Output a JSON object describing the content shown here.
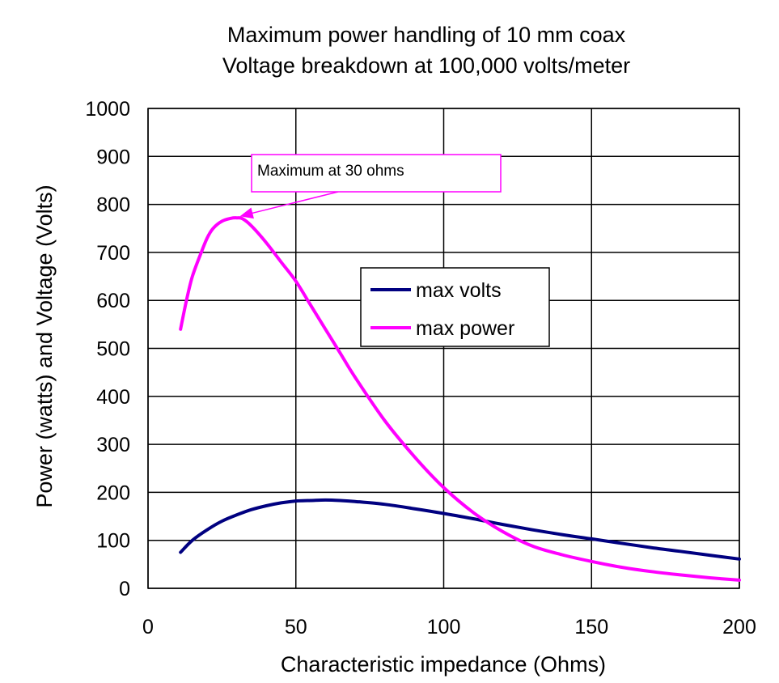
{
  "chart_data": {
    "type": "line",
    "title": "Maximum power handling of 10 mm coax",
    "subtitle": "Voltage breakdown at 100,000 volts/meter",
    "xlabel": "Characteristic impedance (Ohms)",
    "ylabel": "Power (watts) and Voltage (Volts)",
    "xlim": [
      0,
      200
    ],
    "ylim": [
      0,
      1000
    ],
    "xticks": [
      0,
      50,
      100,
      150,
      200
    ],
    "yticks": [
      0,
      100,
      200,
      300,
      400,
      500,
      600,
      700,
      800,
      900,
      1000
    ],
    "grid": true,
    "legend_position": "center-right",
    "series": [
      {
        "name": "max volts",
        "color": "#000080",
        "x": [
          11,
          15,
          20,
          25,
          30,
          35,
          40,
          45,
          50,
          55,
          60,
          65,
          70,
          80,
          90,
          100,
          110,
          120,
          130,
          140,
          150,
          160,
          170,
          180,
          190,
          200
        ],
        "y": [
          75,
          100,
          122,
          140,
          153,
          164,
          172,
          178,
          182,
          183,
          184,
          183,
          181,
          175,
          166,
          156,
          145,
          133,
          122,
          112,
          103,
          94,
          85,
          77,
          69,
          61
        ]
      },
      {
        "name": "max power",
        "color": "#ff00ff",
        "x": [
          11,
          13,
          15,
          18,
          20,
          22,
          25,
          28,
          30,
          32,
          35,
          40,
          45,
          50,
          55,
          60,
          65,
          70,
          80,
          90,
          100,
          110,
          120,
          130,
          140,
          150,
          160,
          170,
          180,
          190,
          200
        ],
        "y": [
          540,
          600,
          650,
          700,
          730,
          750,
          765,
          771,
          772,
          770,
          755,
          720,
          680,
          640,
          590,
          540,
          490,
          440,
          350,
          275,
          210,
          158,
          118,
          88,
          70,
          56,
          44,
          35,
          28,
          22,
          17
        ]
      }
    ],
    "annotation": {
      "text": "Maximum at 30 ohms",
      "point_x": 30,
      "point_y": 772,
      "color": "#ff00ff"
    }
  }
}
